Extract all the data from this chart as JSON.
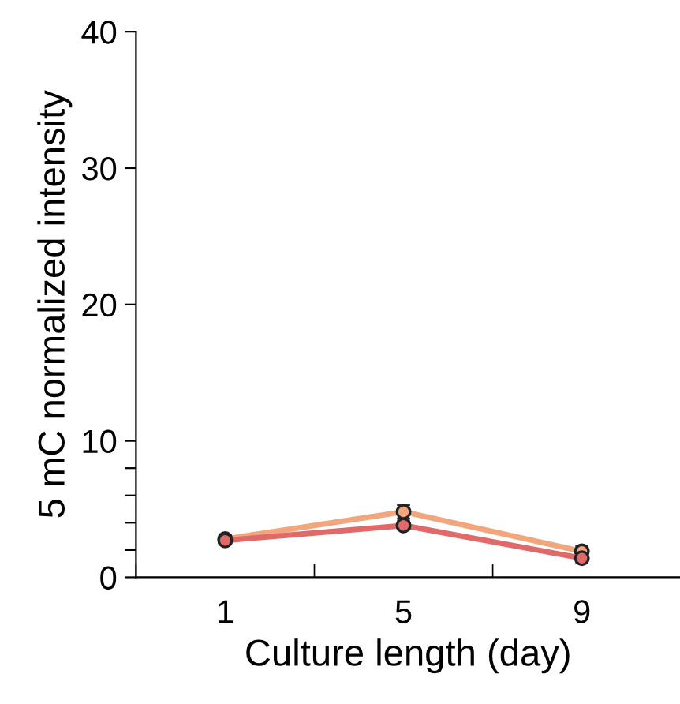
{
  "chart_data": {
    "type": "line",
    "xlabel": "Culture length (day)",
    "ylabel": "5 mC normalized intensity",
    "categories": [
      "1",
      "5",
      "9"
    ],
    "series": [
      {
        "color": "#f2a67e",
        "values": [
          2.8,
          4.8,
          1.9
        ],
        "errors": [
          0.3,
          0.5,
          0.4
        ]
      },
      {
        "color": "#e06a6a",
        "values": [
          2.7,
          3.8,
          1.4
        ],
        "errors": [
          0.2,
          0.3,
          0.3
        ]
      }
    ],
    "ylim": [
      0,
      40
    ],
    "yticks": [
      0,
      {
        "value": 2,
        "label": null
      },
      {
        "value": 4,
        "label": null
      },
      {
        "value": 6,
        "label": null
      },
      {
        "value": 8,
        "label": null
      },
      10,
      20,
      30,
      40
    ],
    "marker": "circle",
    "line_style": "solid",
    "grid": false,
    "legend": false
  }
}
